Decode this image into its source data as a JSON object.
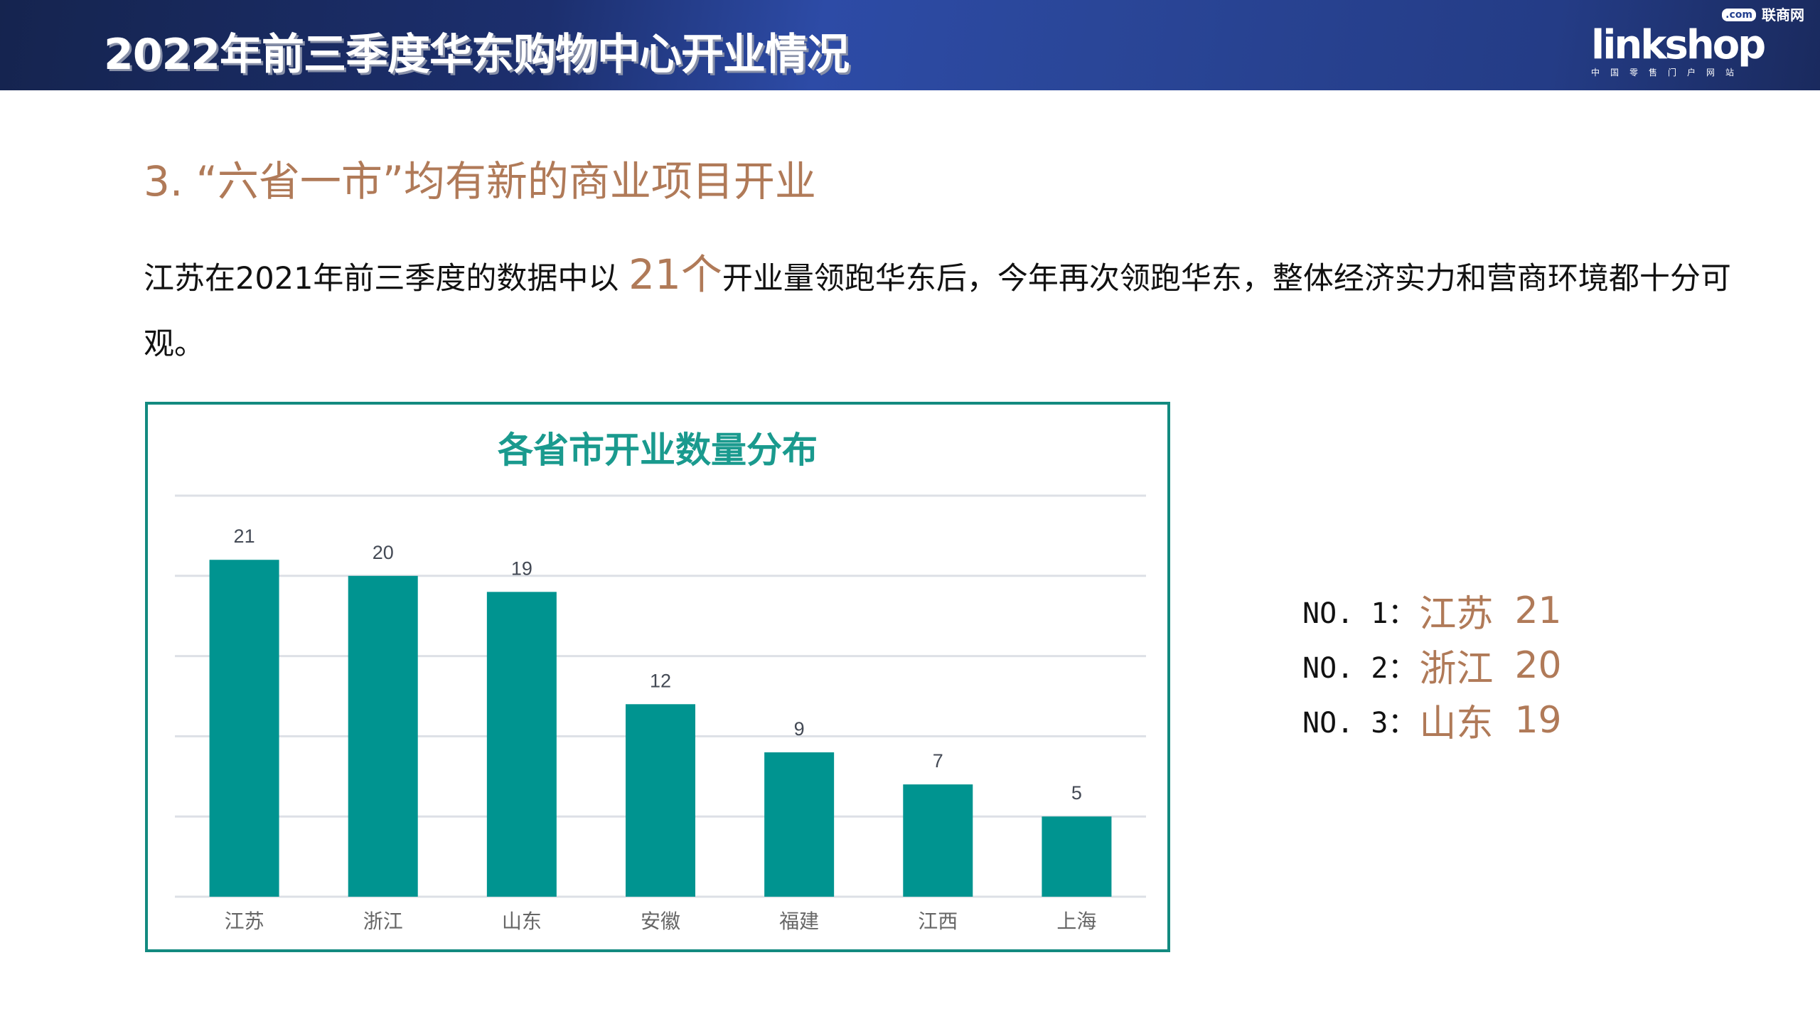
{
  "header": {
    "title": "2022年前三季度华东购物中心开业情况",
    "logo_text": "linkshop",
    "logo_cn": "联商网",
    "logo_sub": "中国零售门户网站",
    "logo_com": ".com"
  },
  "subtitle": "3. “六省一市”均有新的商业项目开业",
  "paragraph": {
    "before": "江苏在2021年前三季度的数据中以 ",
    "highlight": "21个",
    "after": "开业量领跑华东后，今年再次领跑华东，整体经济实力和营商环境都十分可观。"
  },
  "ranking": [
    {
      "no": "NO. 1：",
      "name": "江苏",
      "value": "21"
    },
    {
      "no": "NO. 2：",
      "name": "浙江",
      "value": "20"
    },
    {
      "no": "NO. 3：",
      "name": "山东",
      "value": "19"
    }
  ],
  "chart_data": {
    "type": "bar",
    "title": "各省市开业数量分布",
    "categories": [
      "江苏",
      "浙江",
      "山东",
      "安徽",
      "福建",
      "江西",
      "上海"
    ],
    "values": [
      21,
      20,
      19,
      12,
      9,
      7,
      5
    ],
    "ylim": [
      0,
      25
    ],
    "yticks": [
      0,
      5,
      10,
      15,
      20,
      25
    ],
    "grid": true,
    "bar_color": "#009490",
    "xlabel": "",
    "ylabel": ""
  }
}
